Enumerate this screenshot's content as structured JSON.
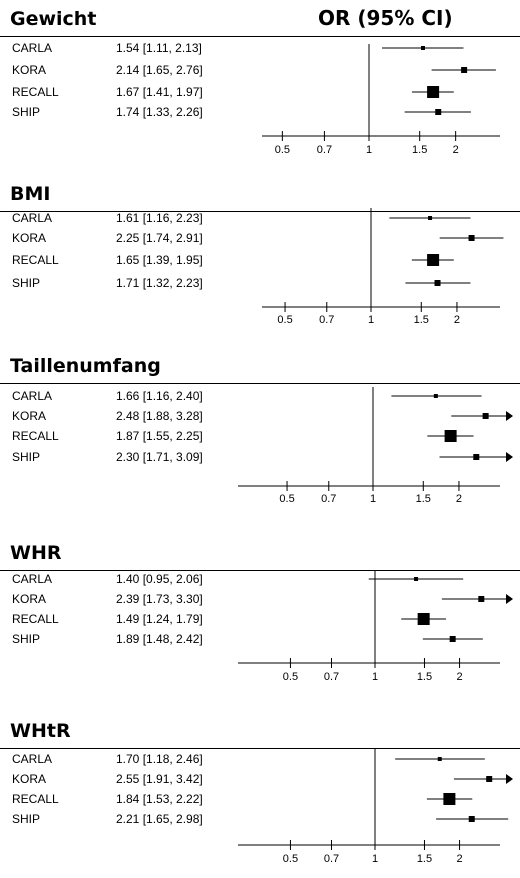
{
  "column_title": "OR (95% CI)",
  "chart_data": [
    {
      "type": "forest",
      "title": "Gewicht",
      "x_scale": "log",
      "reference_line": 1,
      "ticks": [
        "0.5",
        "0.7",
        "1",
        "1.5",
        "2"
      ],
      "rows": [
        {
          "label": "CARLA",
          "text": "1.54 [1.11, 2.13]",
          "or": 1.54,
          "lo": 1.11,
          "hi": 2.13,
          "weight": 1
        },
        {
          "label": "KORA",
          "text": "2.14 [1.65, 2.76]",
          "or": 2.14,
          "lo": 1.65,
          "hi": 2.76,
          "weight": 2
        },
        {
          "label": "RECALL",
          "text": "1.67 [1.41, 1.97]",
          "or": 1.67,
          "lo": 1.41,
          "hi": 1.97,
          "weight": 4
        },
        {
          "label": "SHIP",
          "text": "1.74 [1.33, 2.26]",
          "or": 1.74,
          "lo": 1.33,
          "hi": 2.26,
          "weight": 2
        }
      ]
    },
    {
      "type": "forest",
      "title": "BMI",
      "x_scale": "log",
      "reference_line": 1,
      "ticks": [
        "0.5",
        "0.7",
        "1",
        "1.5",
        "2"
      ],
      "rows": [
        {
          "label": "CARLA",
          "text": "1.61 [1.16, 2.23]",
          "or": 1.61,
          "lo": 1.16,
          "hi": 2.23,
          "weight": 1
        },
        {
          "label": "KORA",
          "text": "2.25 [1.74, 2.91]",
          "or": 2.25,
          "lo": 1.74,
          "hi": 2.91,
          "weight": 2
        },
        {
          "label": "RECALL",
          "text": "1.65 [1.39, 1.95]",
          "or": 1.65,
          "lo": 1.39,
          "hi": 1.95,
          "weight": 4
        },
        {
          "label": "SHIP",
          "text": "1.71 [1.32, 2.23]",
          "or": 1.71,
          "lo": 1.32,
          "hi": 2.23,
          "weight": 2
        }
      ]
    },
    {
      "type": "forest",
      "title": "Taillenumfang",
      "x_scale": "log",
      "reference_line": 1,
      "ticks": [
        "0.5",
        "0.7",
        "1",
        "1.5",
        "2"
      ],
      "rows": [
        {
          "label": "CARLA",
          "text": "1.66 [1.16, 2.40]",
          "or": 1.66,
          "lo": 1.16,
          "hi": 2.4,
          "weight": 1
        },
        {
          "label": "KORA",
          "text": "2.48 [1.88, 3.28]",
          "or": 2.48,
          "lo": 1.88,
          "hi": 3.28,
          "weight": 2
        },
        {
          "label": "RECALL",
          "text": "1.87 [1.55, 2.25]",
          "or": 1.87,
          "lo": 1.55,
          "hi": 2.25,
          "weight": 4
        },
        {
          "label": "SHIP",
          "text": "2.30 [1.71, 3.09]",
          "or": 2.3,
          "lo": 1.71,
          "hi": 3.09,
          "weight": 2
        }
      ]
    },
    {
      "type": "forest",
      "title": "WHR",
      "x_scale": "log",
      "reference_line": 1,
      "ticks": [
        "0.5",
        "0.7",
        "1",
        "1.5",
        "2"
      ],
      "rows": [
        {
          "label": "CARLA",
          "text": "1.40 [0.95, 2.06]",
          "or": 1.4,
          "lo": 0.95,
          "hi": 2.06,
          "weight": 1
        },
        {
          "label": "KORA",
          "text": "2.39 [1.73, 3.30]",
          "or": 2.39,
          "lo": 1.73,
          "hi": 3.3,
          "weight": 2
        },
        {
          "label": "RECALL",
          "text": "1.49 [1.24, 1.79]",
          "or": 1.49,
          "lo": 1.24,
          "hi": 1.79,
          "weight": 4
        },
        {
          "label": "SHIP",
          "text": "1.89 [1.48, 2.42]",
          "or": 1.89,
          "lo": 1.48,
          "hi": 2.42,
          "weight": 2
        }
      ]
    },
    {
      "type": "forest",
      "title": "WHtR",
      "x_scale": "log",
      "reference_line": 1,
      "ticks": [
        "0.5",
        "0.7",
        "1",
        "1.5",
        "2"
      ],
      "rows": [
        {
          "label": "CARLA",
          "text": "1.70 [1.18, 2.46]",
          "or": 1.7,
          "lo": 1.18,
          "hi": 2.46,
          "weight": 1
        },
        {
          "label": "KORA",
          "text": "2.55 [1.91, 3.42]",
          "or": 2.55,
          "lo": 1.91,
          "hi": 3.42,
          "weight": 2
        },
        {
          "label": "RECALL",
          "text": "1.84 [1.53, 2.22]",
          "or": 1.84,
          "lo": 1.53,
          "hi": 2.22,
          "weight": 4
        },
        {
          "label": "SHIP",
          "text": "2.21 [1.65, 2.98]",
          "or": 2.21,
          "lo": 1.65,
          "hi": 2.98,
          "weight": 2
        }
      ]
    }
  ]
}
